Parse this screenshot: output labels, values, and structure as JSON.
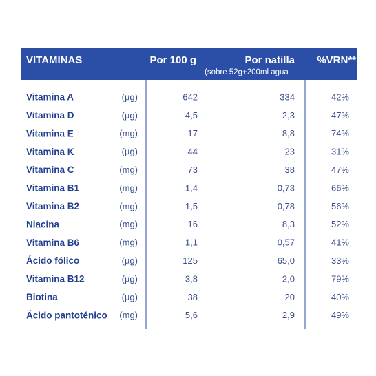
{
  "table": {
    "header": [
      "VITAMINAS",
      "Por 100 g",
      "Por natilla",
      "%VRN**"
    ],
    "subheader": "(sobre 52g+200ml agua",
    "rows": [
      [
        "Vitamina A",
        "(µg)",
        "642",
        "334",
        "42%"
      ],
      [
        "Vitamina D",
        "(µg)",
        "4,5",
        "2,3",
        "47%"
      ],
      [
        "Vitamina E",
        "(mg)",
        "17",
        "8,8",
        "74%"
      ],
      [
        "Vitamina K",
        "(µg)",
        "44",
        "23",
        "31%"
      ],
      [
        "Vitamina C",
        "(mg)",
        "73",
        "38",
        "47%"
      ],
      [
        "Vitamina B1",
        "(mg)",
        "1,4",
        "0,73",
        "66%"
      ],
      [
        "Vitamina B2",
        "(mg)",
        "1,5",
        "0,78",
        "56%"
      ],
      [
        "Niacina",
        "(mg)",
        "16",
        "8,3",
        "52%"
      ],
      [
        "Vitamina B6",
        "(mg)",
        "1,1",
        "0,57",
        "41%"
      ],
      [
        "Ácido fólico",
        "(µg)",
        "125",
        "65,0",
        "33%"
      ],
      [
        "Vitamina B12",
        "(µg)",
        "3,8",
        "2,0",
        "79%"
      ],
      [
        "Biotina",
        "(µg)",
        "38",
        "20",
        "40%"
      ],
      [
        "Ácido pantoténico",
        "(mg)",
        "5,6",
        "2,9",
        "49%"
      ]
    ]
  }
}
